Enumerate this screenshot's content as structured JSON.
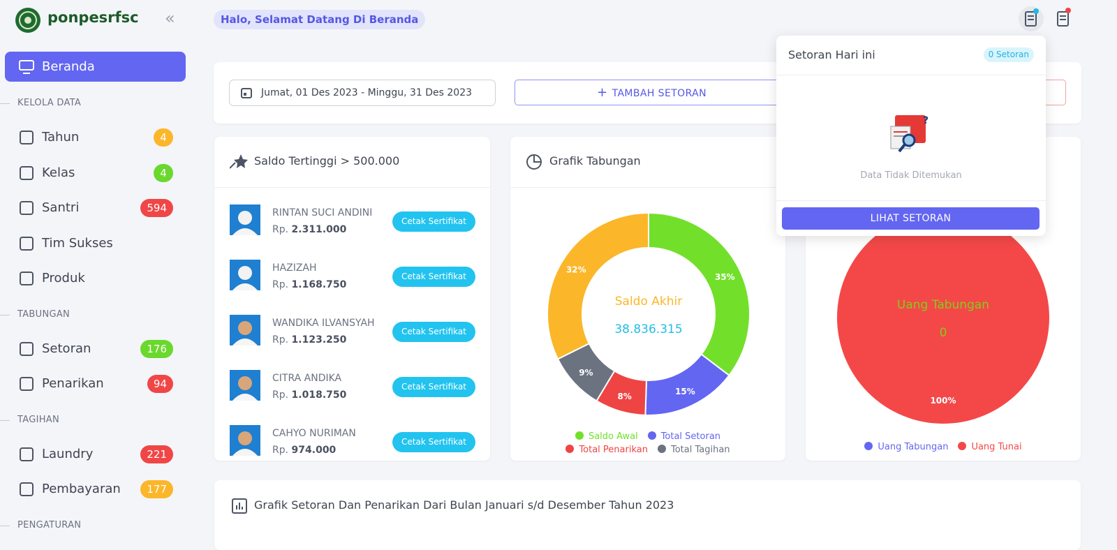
{
  "brand": "ponpesrfsc",
  "greeting": "Halo, Selamat Datang Di Beranda",
  "sidebar": {
    "active": "Beranda",
    "sections": [
      {
        "title": "KELOLA DATA",
        "items": [
          {
            "label": "Tahun",
            "badge": 4,
            "color": "#fbb62a"
          },
          {
            "label": "Kelas",
            "badge": 4,
            "color": "#6ad82c"
          },
          {
            "label": "Santri",
            "badge": 594,
            "color": "#f04646"
          },
          {
            "label": "Tim Sukses",
            "badge": null,
            "color": null
          },
          {
            "label": "Produk",
            "badge": null,
            "color": null
          }
        ]
      },
      {
        "title": "TABUNGAN",
        "items": [
          {
            "label": "Setoran",
            "badge": 176,
            "color": "#6ad82c"
          },
          {
            "label": "Penarikan",
            "badge": 94,
            "color": "#f04646"
          }
        ]
      },
      {
        "title": "TAGIHAN",
        "items": [
          {
            "label": "Laundry",
            "badge": 221,
            "color": "#f04646"
          },
          {
            "label": "Pembayaran",
            "badge": 177,
            "color": "#fbb62a"
          }
        ]
      },
      {
        "title": "PENGATURAN",
        "items": []
      }
    ]
  },
  "filter": {
    "date_range": "Jumat, 01 Des 2023 - Minggu, 31 Des 2023",
    "add_button": "TAMBAH SETORAN"
  },
  "top_balances": {
    "title": "Saldo Tertinggi > 500.000",
    "currency": "Rp.",
    "button": "Cetak Sertifikat",
    "rows": [
      {
        "name": "RINTAN SUCI ANDINI",
        "amount": "2.311.000"
      },
      {
        "name": "HAZIZAH",
        "amount": "1.168.750"
      },
      {
        "name": "WANDIKA ILVANSYAH",
        "amount": "1.123.250"
      },
      {
        "name": "CITRA ANDIKA",
        "amount": "1.018.750"
      },
      {
        "name": "CAHYO NURIMAN",
        "amount": "974.000"
      }
    ]
  },
  "savings_chart": {
    "title": "Grafik Tabungan",
    "chart_data": {
      "type": "donut",
      "categories": [
        "Saldo Awal",
        "Total Setoran",
        "Total Penarikan",
        "Total Tagihan",
        null
      ],
      "values": [
        35,
        15,
        8,
        9,
        32
      ],
      "value_labels": [
        "35%",
        "15%",
        "8%",
        "9%",
        "32%"
      ],
      "colors": [
        "#72e02a",
        "#6366f1",
        "#ef4444",
        "#6b7280",
        "#fbb62a"
      ],
      "center_label": "Saldo Akhir",
      "center_value": "38.836.315"
    }
  },
  "cash_chart": {
    "chart_data": {
      "type": "pie",
      "categories": [
        "Uang Tabungan",
        "Uang Tunai"
      ],
      "values": [
        0,
        100
      ],
      "value_labels": [
        null,
        "100%"
      ],
      "colors": [
        "#6366f1",
        "#f44848"
      ],
      "center_label": "Uang Tabungan",
      "center_value": 0
    }
  },
  "monthly_chart": {
    "title": "Grafik Setoran Dan Penarikan Dari Bulan Januari s/d Desember Tahun 2023"
  },
  "popup": {
    "title": "Setoran Hari ini",
    "badge": "0 Setoran",
    "empty": "Data Tidak Ditemukan",
    "button": "LIHAT SETORAN"
  }
}
